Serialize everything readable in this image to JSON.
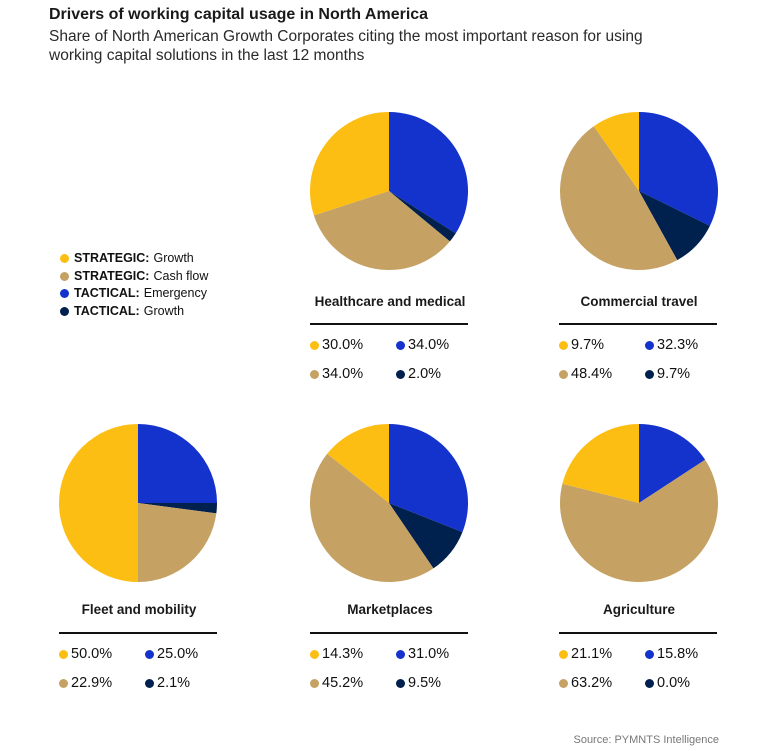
{
  "header": {
    "title": "Drivers of working capital usage in North America",
    "subtitle": "Share of North American Growth Corporates citing the most important reason for using working capital solutions in the last 12 months"
  },
  "colors": {
    "strategic_growth": "#fdbe14",
    "strategic_cash_flow": "#c5a263",
    "tactical_emergency": "#1432cc",
    "tactical_growth": "#00204d"
  },
  "legend": [
    {
      "key": "strategic_growth",
      "bold": "STRATEGIC:",
      "label": "Growth"
    },
    {
      "key": "strategic_cash_flow",
      "bold": "STRATEGIC:",
      "label": "Cash flow"
    },
    {
      "key": "tactical_emergency",
      "bold": "TACTICAL:",
      "label": "Emergency"
    },
    {
      "key": "tactical_growth",
      "bold": "TACTICAL:",
      "label": "Growth"
    }
  ],
  "chart_data": [
    {
      "type": "pie",
      "title": "Healthcare and medical",
      "series": [
        {
          "name": "TACTICAL: Emergency",
          "value": 34.0,
          "label": "34.0%"
        },
        {
          "name": "TACTICAL: Growth",
          "value": 2.0,
          "label": "2.0%"
        },
        {
          "name": "STRATEGIC: Cash flow",
          "value": 34.0,
          "label": "34.0%"
        },
        {
          "name": "STRATEGIC: Growth",
          "value": 30.0,
          "label": "30.0%"
        }
      ]
    },
    {
      "type": "pie",
      "title": "Commercial travel",
      "series": [
        {
          "name": "TACTICAL: Emergency",
          "value": 32.3,
          "label": "32.3%"
        },
        {
          "name": "TACTICAL: Growth",
          "value": 9.7,
          "label": "9.7%"
        },
        {
          "name": "STRATEGIC: Cash flow",
          "value": 48.4,
          "label": "48.4%"
        },
        {
          "name": "STRATEGIC: Growth",
          "value": 9.7,
          "label": "9.7%"
        }
      ]
    },
    {
      "type": "pie",
      "title": "Fleet and mobility",
      "series": [
        {
          "name": "TACTICAL: Emergency",
          "value": 25.0,
          "label": "25.0%"
        },
        {
          "name": "TACTICAL: Growth",
          "value": 2.1,
          "label": "2.1%"
        },
        {
          "name": "STRATEGIC: Cash flow",
          "value": 22.9,
          "label": "22.9%"
        },
        {
          "name": "STRATEGIC: Growth",
          "value": 50.0,
          "label": "50.0%"
        }
      ]
    },
    {
      "type": "pie",
      "title": "Marketplaces",
      "series": [
        {
          "name": "TACTICAL: Emergency",
          "value": 31.0,
          "label": "31.0%"
        },
        {
          "name": "TACTICAL: Growth",
          "value": 9.5,
          "label": "9.5%"
        },
        {
          "name": "STRATEGIC: Cash flow",
          "value": 45.2,
          "label": "45.2%"
        },
        {
          "name": "STRATEGIC: Growth",
          "value": 14.3,
          "label": "14.3%"
        }
      ]
    },
    {
      "type": "pie",
      "title": "Agriculture",
      "series": [
        {
          "name": "TACTICAL: Emergency",
          "value": 15.8,
          "label": "15.8%"
        },
        {
          "name": "TACTICAL: Growth",
          "value": 0.0,
          "label": "0.0%"
        },
        {
          "name": "STRATEGIC: Cash flow",
          "value": 63.2,
          "label": "63.2%"
        },
        {
          "name": "STRATEGIC: Growth",
          "value": 21.1,
          "label": "21.1%"
        }
      ]
    }
  ],
  "source": "Source: PYMNTS Intelligence"
}
